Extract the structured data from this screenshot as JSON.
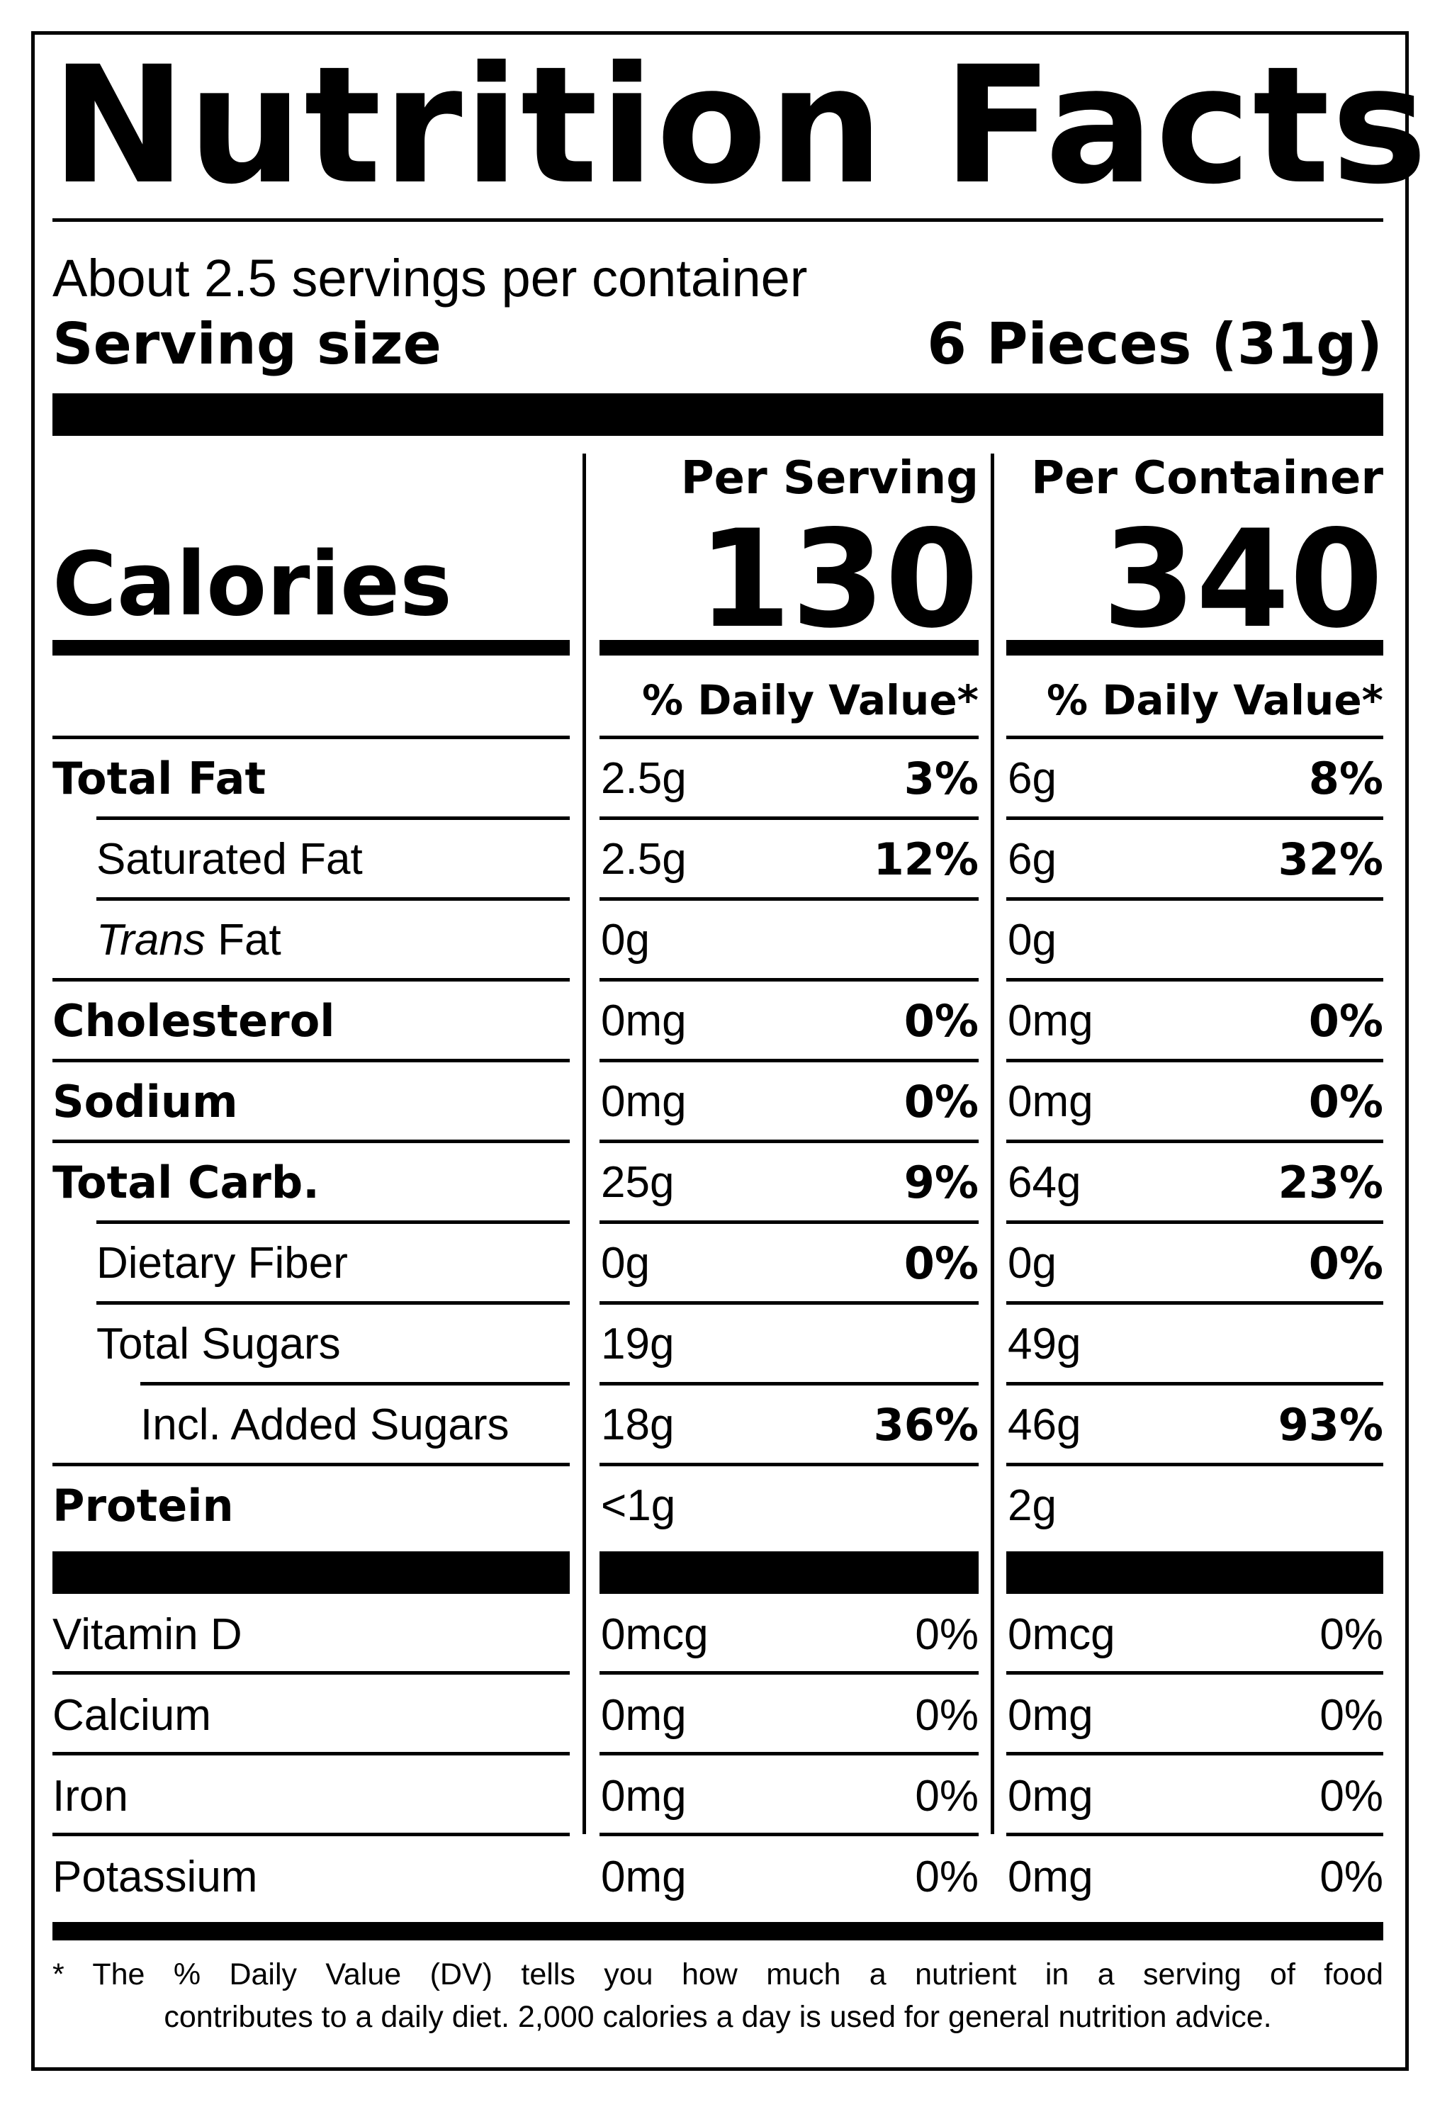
{
  "title": "Nutrition Facts",
  "servings_per_container": "About 2.5 servings per container",
  "serving_size_label": "Serving size",
  "serving_size_value": "6 Pieces (31g)",
  "calories_label": "Calories",
  "columns": [
    {
      "header": "Per Serving",
      "calories": "130",
      "dv_header": "% Daily Value*"
    },
    {
      "header": "Per Container",
      "calories": "340",
      "dv_header": "% Daily Value*"
    }
  ],
  "nutrients": [
    {
      "label": "Total Fat",
      "bold": true,
      "indent": 0,
      "serving_amount": "2.5g",
      "serving_dv": "3%",
      "container_amount": "6g",
      "container_dv": "8%"
    },
    {
      "label": "Saturated Fat",
      "bold": false,
      "indent": 1,
      "serving_amount": "2.5g",
      "serving_dv": "12%",
      "container_amount": "6g",
      "container_dv": "32%"
    },
    {
      "label_italic": "Trans",
      "label": " Fat",
      "bold": false,
      "indent": 1,
      "serving_amount": "0g",
      "serving_dv": "",
      "container_amount": "0g",
      "container_dv": ""
    },
    {
      "label": "Cholesterol",
      "bold": true,
      "indent": 0,
      "serving_amount": "0mg",
      "serving_dv": "0%",
      "container_amount": "0mg",
      "container_dv": "0%"
    },
    {
      "label": "Sodium",
      "bold": true,
      "indent": 0,
      "serving_amount": "0mg",
      "serving_dv": "0%",
      "container_amount": "0mg",
      "container_dv": "0%"
    },
    {
      "label": "Total Carb.",
      "bold": true,
      "indent": 0,
      "serving_amount": "25g",
      "serving_dv": "9%",
      "container_amount": "64g",
      "container_dv": "23%"
    },
    {
      "label": "Dietary Fiber",
      "bold": false,
      "indent": 1,
      "serving_amount": "0g",
      "serving_dv": "0%",
      "container_amount": "0g",
      "container_dv": "0%"
    },
    {
      "label": "Total Sugars",
      "bold": false,
      "indent": 1,
      "serving_amount": "19g",
      "serving_dv": "",
      "container_amount": "49g",
      "container_dv": ""
    },
    {
      "label": "Incl. Added Sugars",
      "bold": false,
      "indent": 2,
      "serving_amount": "18g",
      "serving_dv": "36%",
      "container_amount": "46g",
      "container_dv": "93%"
    },
    {
      "label": "Protein",
      "bold": true,
      "indent": 0,
      "serving_amount": "<1g",
      "serving_dv": "",
      "container_amount": "2g",
      "container_dv": ""
    }
  ],
  "vitamins": [
    {
      "label": "Vitamin D",
      "serving_amount": "0mcg",
      "serving_dv": "0%",
      "container_amount": "0mcg",
      "container_dv": "0%"
    },
    {
      "label": "Calcium",
      "serving_amount": "0mg",
      "serving_dv": "0%",
      "container_amount": "0mg",
      "container_dv": "0%"
    },
    {
      "label": "Iron",
      "serving_amount": "0mg",
      "serving_dv": "0%",
      "container_amount": "0mg",
      "container_dv": "0%"
    },
    {
      "label": "Potassium",
      "serving_amount": "0mg",
      "serving_dv": "0%",
      "container_amount": "0mg",
      "container_dv": "0%"
    }
  ],
  "footnote_line1": "* The % Daily Value (DV) tells you how much a nutrient in a serving of food",
  "footnote_line2": "contributes to a daily diet. 2,000 calories a day is used for general nutrition advice."
}
